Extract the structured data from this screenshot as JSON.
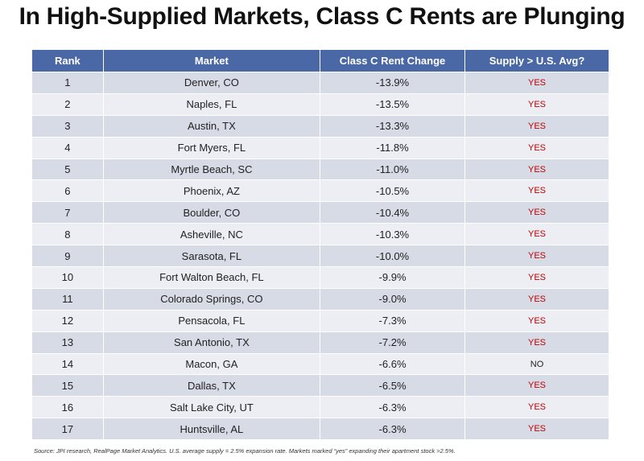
{
  "header": {
    "title": "In High-Supplied Markets, Class C Rents are Plunging"
  },
  "table": {
    "columns": [
      "Rank",
      "Market",
      "Class C Rent Change",
      "Supply > U.S. Avg?"
    ],
    "rows": [
      [
        "1",
        "Denver, CO",
        "-13.9%",
        "YES"
      ],
      [
        "2",
        "Naples, FL",
        "-13.5%",
        "YES"
      ],
      [
        "3",
        "Austin, TX",
        "-13.3%",
        "YES"
      ],
      [
        "4",
        "Fort Myers, FL",
        "-11.8%",
        "YES"
      ],
      [
        "5",
        "Myrtle Beach, SC",
        "-11.0%",
        "YES"
      ],
      [
        "6",
        "Phoenix, AZ",
        "-10.5%",
        "YES"
      ],
      [
        "7",
        "Boulder, CO",
        "-10.4%",
        "YES"
      ],
      [
        "8",
        "Asheville, NC",
        "-10.3%",
        "YES"
      ],
      [
        "9",
        "Sarasota, FL",
        "-10.0%",
        "YES"
      ],
      [
        "10",
        "Fort Walton Beach, FL",
        "-9.9%",
        "YES"
      ],
      [
        "11",
        "Colorado Springs, CO",
        "-9.0%",
        "YES"
      ],
      [
        "12",
        "Pensacola, FL",
        "-7.3%",
        "YES"
      ],
      [
        "13",
        "San Antonio, TX",
        "-7.2%",
        "YES"
      ],
      [
        "14",
        "Macon, GA",
        "-6.6%",
        "NO"
      ],
      [
        "15",
        "Dallas, TX",
        "-6.5%",
        "YES"
      ],
      [
        "16",
        "Salt Lake City, UT",
        "-6.3%",
        "YES"
      ],
      [
        "17",
        "Huntsville, AL",
        "-6.3%",
        "YES"
      ]
    ]
  },
  "footer": {
    "source": "Source: JPI research, RealPage Market Analytics. U.S. average supply = 2.5% expansion rate. Markets marked “yes” expanding their apartment stock >2.5%."
  }
}
